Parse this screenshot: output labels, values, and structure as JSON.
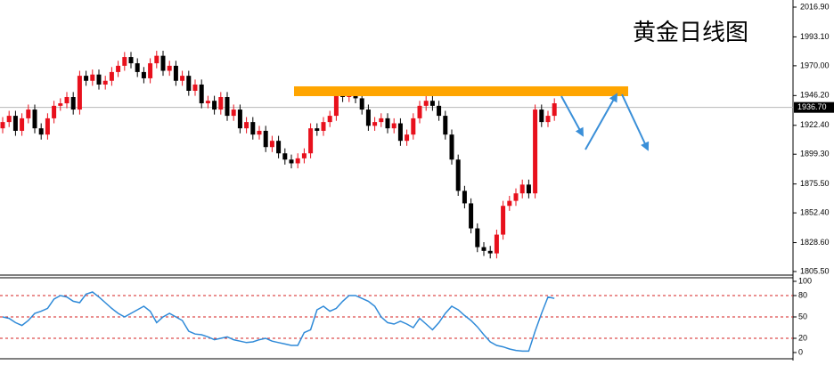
{
  "chart_data": [
    {
      "type": "candlestick",
      "title": "黄金日线图",
      "open": [
        1920,
        1925,
        1930,
        1918,
        1928,
        1935,
        1920,
        1915,
        1928,
        1938,
        1940,
        1945,
        1935,
        1962,
        1958,
        1963,
        1955,
        1958,
        1965,
        1970,
        1977,
        1972,
        1965,
        1960,
        1972,
        1978,
        1966,
        1970,
        1958,
        1962,
        1950,
        1955,
        1940,
        1942,
        1935,
        1945,
        1930,
        1935,
        1920,
        1925,
        1915,
        1918,
        1905,
        1910,
        1900,
        1895,
        1892,
        1896,
        1900,
        1920,
        1918,
        1925,
        1930,
        1948,
        1945,
        1947,
        1944,
        1935,
        1922,
        1925,
        1928,
        1920,
        1924,
        1910,
        1915,
        1928,
        1938,
        1942,
        1938,
        1930,
        1915,
        1895,
        1870,
        1860,
        1840,
        1825,
        1822,
        1820,
        1835,
        1858,
        1862,
        1868,
        1875,
        1868,
        1935,
        1925,
        1930
      ],
      "high": [
        1929,
        1934,
        1934,
        1932,
        1939,
        1939,
        1924,
        1932,
        1942,
        1944,
        1949,
        1949,
        1966,
        1966,
        1967,
        1967,
        1962,
        1969,
        1974,
        1981,
        1981,
        1976,
        1969,
        1976,
        1982,
        1982,
        1974,
        1974,
        1966,
        1966,
        1959,
        1959,
        1946,
        1946,
        1949,
        1949,
        1939,
        1939,
        1929,
        1929,
        1922,
        1922,
        1914,
        1914,
        1904,
        1899,
        1900,
        1904,
        1924,
        1924,
        1929,
        1934,
        1952,
        1952,
        1951,
        1951,
        1948,
        1939,
        1929,
        1932,
        1932,
        1928,
        1928,
        1919,
        1932,
        1942,
        1946,
        1946,
        1942,
        1934,
        1919,
        1899,
        1874,
        1864,
        1844,
        1829,
        1826,
        1839,
        1862,
        1866,
        1872,
        1879,
        1879,
        1939,
        1939,
        1934,
        1944
      ],
      "low": [
        1916,
        1921,
        1914,
        1914,
        1924,
        1916,
        1911,
        1911,
        1924,
        1934,
        1936,
        1931,
        1931,
        1954,
        1954,
        1951,
        1951,
        1954,
        1961,
        1966,
        1968,
        1961,
        1956,
        1956,
        1968,
        1962,
        1962,
        1954,
        1954,
        1946,
        1946,
        1936,
        1936,
        1931,
        1931,
        1926,
        1926,
        1916,
        1916,
        1911,
        1911,
        1901,
        1901,
        1896,
        1891,
        1888,
        1888,
        1892,
        1896,
        1914,
        1914,
        1921,
        1926,
        1941,
        1941,
        1940,
        1931,
        1918,
        1918,
        1921,
        1916,
        1916,
        1906,
        1906,
        1911,
        1924,
        1934,
        1934,
        1926,
        1911,
        1891,
        1866,
        1856,
        1836,
        1821,
        1818,
        1816,
        1816,
        1831,
        1854,
        1858,
        1864,
        1864,
        1864,
        1921,
        1921,
        1926
      ],
      "close": [
        1925,
        1930,
        1918,
        1928,
        1935,
        1920,
        1915,
        1928,
        1938,
        1940,
        1945,
        1935,
        1962,
        1958,
        1963,
        1955,
        1958,
        1965,
        1970,
        1977,
        1972,
        1965,
        1960,
        1972,
        1978,
        1966,
        1970,
        1958,
        1962,
        1950,
        1955,
        1940,
        1942,
        1935,
        1945,
        1930,
        1935,
        1920,
        1925,
        1915,
        1918,
        1905,
        1910,
        1900,
        1895,
        1892,
        1896,
        1900,
        1920,
        1918,
        1925,
        1930,
        1948,
        1945,
        1947,
        1944,
        1935,
        1922,
        1925,
        1928,
        1920,
        1924,
        1910,
        1915,
        1928,
        1938,
        1942,
        1938,
        1930,
        1915,
        1895,
        1870,
        1860,
        1840,
        1825,
        1822,
        1820,
        1835,
        1858,
        1862,
        1868,
        1875,
        1868,
        1935,
        1925,
        1930,
        1940
      ],
      "up_color": "#e8101c",
      "down_color": "#000000",
      "ylim": [
        1805.5,
        2016.9
      ],
      "yticks": [
        {
          "value": 2016.9,
          "label": "2016.90"
        },
        {
          "value": 1993.1,
          "label": "1993.10"
        },
        {
          "value": 1970,
          "label": "1970.00"
        },
        {
          "value": 1946.2,
          "label": "1946.20"
        },
        {
          "value": 1922.4,
          "label": "1922.40"
        },
        {
          "value": 1899.3,
          "label": "1899.30"
        },
        {
          "value": 1875.5,
          "label": "1875.50"
        },
        {
          "value": 1852.4,
          "label": "1852.40"
        },
        {
          "value": 1828.6,
          "label": "1828.60"
        },
        {
          "value": 1805.5,
          "label": "1805.50"
        }
      ],
      "current_price": {
        "value": 1936.7,
        "label": "1936.70"
      },
      "resistance": {
        "value": 1950,
        "color": "#ffa500"
      }
    },
    {
      "type": "line",
      "color": "#2f8ad8",
      "values": [
        50,
        48,
        42,
        38,
        45,
        55,
        58,
        62,
        75,
        80,
        78,
        72,
        70,
        82,
        85,
        78,
        70,
        62,
        55,
        50,
        55,
        60,
        65,
        58,
        42,
        50,
        55,
        50,
        45,
        30,
        26,
        25,
        22,
        18,
        20,
        22,
        18,
        16,
        14,
        15,
        18,
        20,
        16,
        14,
        12,
        10,
        10,
        28,
        32,
        60,
        65,
        58,
        62,
        72,
        80,
        80,
        76,
        72,
        65,
        50,
        42,
        40,
        44,
        40,
        35,
        48,
        40,
        32,
        42,
        55,
        65,
        60,
        52,
        45,
        36,
        25,
        15,
        10,
        8,
        5,
        3,
        2,
        2,
        30,
        55,
        78,
        76
      ],
      "ylim": [
        0,
        100
      ],
      "yticks": [
        100,
        80,
        50,
        20,
        0
      ],
      "levels": [
        80,
        50,
        20
      ],
      "level_color": "#d42020"
    }
  ]
}
